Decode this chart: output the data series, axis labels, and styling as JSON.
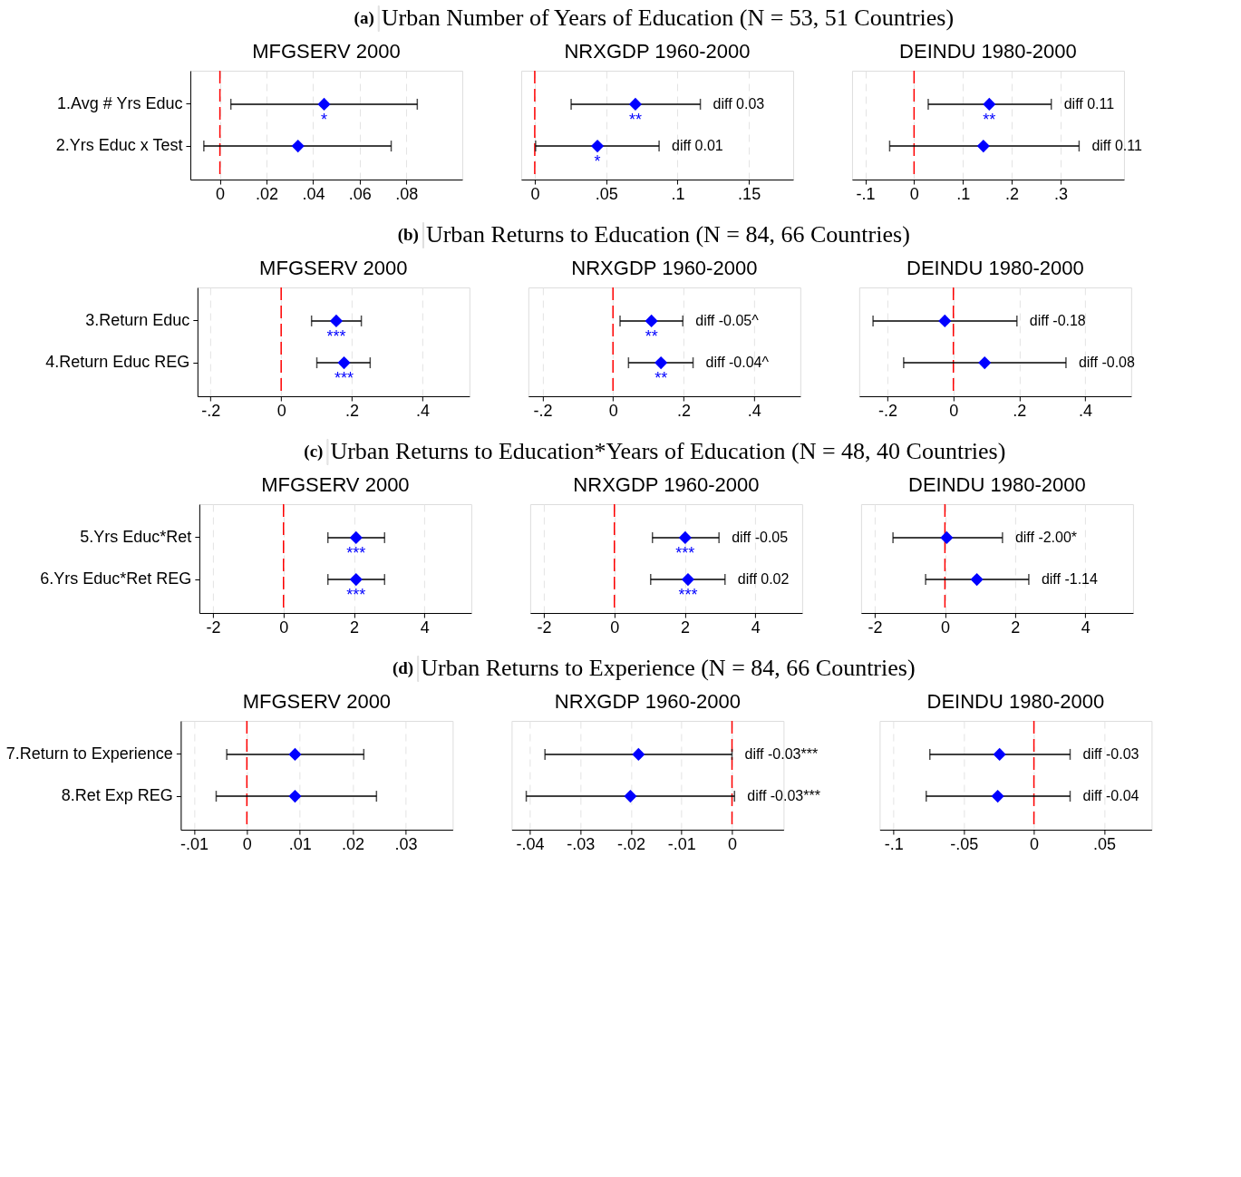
{
  "chart_data": [
    {
      "type": "scatter",
      "orientation": "horizontal",
      "title": "MFGSERV 2000",
      "annotations": [
        "(a) Urban Number of Years of Education (N = 53, 51 Countries)"
      ],
      "categories": [
        "1.Avg # Yrs Educ",
        "2.Yrs Educ x Test"
      ],
      "series": [
        {
          "color": "#0000ff",
          "values": [
            0.0447,
            0.0335
          ],
          "errors": [
            [
              0.0047,
              0.0847
            ],
            [
              -0.0069,
              0.0735
            ]
          ],
          "value_labels": [
            "*",
            null
          ]
        }
      ],
      "xlim": [
        -0.0127,
        0.104
      ],
      "xticks": [
        0,
        {
          "value": 0.02,
          "label": ".02"
        },
        {
          "value": 0.04,
          "label": ".04"
        },
        {
          "value": 0.06,
          "label": ".06"
        },
        {
          "value": 0.08,
          "label": ".08"
        }
      ],
      "grid": "x",
      "marker": "diamond",
      "ref_lines": [
        {
          "axis": "x",
          "value": 0,
          "color": "#ff0000",
          "line_style": "dashed"
        }
      ]
    },
    {
      "type": "scatter",
      "orientation": "horizontal",
      "title": "NRXGDP 1960-2000",
      "annotations": [
        {
          "text": "diff 0.03",
          "x": 0.116,
          "y": "1.Avg # Yrs Educ"
        },
        {
          "text": "diff 0.01",
          "x": 0.0871,
          "y": "2.Yrs Educ x Test"
        }
      ],
      "categories": [
        "1.Avg # Yrs Educ",
        "2.Yrs Educ x Test"
      ],
      "series": [
        {
          "color": "#0000ff",
          "values": [
            0.0705,
            0.0439
          ],
          "errors": [
            [
              0.0255,
              0.116
            ],
            [
              0.0006,
              0.0871
            ]
          ],
          "value_labels": [
            "**",
            "*"
          ]
        }
      ],
      "xlim": [
        -0.0095,
        0.181
      ],
      "xticks": [
        0,
        {
          "value": 0.05,
          "label": ".05"
        },
        {
          "value": 0.1,
          "label": ".1"
        },
        {
          "value": 0.15,
          "label": ".15"
        }
      ],
      "grid": "x",
      "marker": "diamond",
      "tick_labels": "x",
      "ref_lines": [
        {
          "axis": "x",
          "value": 0,
          "color": "#ff0000",
          "line_style": "dashed"
        }
      ]
    },
    {
      "type": "scatter",
      "orientation": "horizontal",
      "title": "DEINDU 1980-2000",
      "annotations": [
        {
          "text": "diff 0.11",
          "x": 0.281,
          "y": "1.Avg # Yrs Educ"
        },
        {
          "text": "diff 0.11",
          "x": 0.338,
          "y": "2.Yrs Educ x Test"
        }
      ],
      "categories": [
        "1.Avg # Yrs Educ",
        "2.Yrs Educ x Test"
      ],
      "series": [
        {
          "color": "#0000ff",
          "values": [
            0.154,
            0.142
          ],
          "errors": [
            [
              0.029,
              0.281
            ],
            [
              -0.05,
              0.338
            ]
          ],
          "value_labels": [
            "**",
            null
          ]
        }
      ],
      "xlim": [
        -0.127,
        0.43
      ],
      "xticks": [
        {
          "value": -0.1,
          "label": "-.1"
        },
        0,
        {
          "value": 0.1,
          "label": ".1"
        },
        {
          "value": 0.2,
          "label": ".2"
        },
        {
          "value": 0.3,
          "label": ".3"
        }
      ],
      "grid": "x",
      "marker": "diamond",
      "tick_labels": "x",
      "ref_lines": [
        {
          "axis": "x",
          "value": 0,
          "color": "#ff0000",
          "line_style": "dashed"
        }
      ]
    },
    {
      "type": "scatter",
      "orientation": "horizontal",
      "title": "MFGSERV 2000",
      "annotations": [
        "(b) Urban Returns to Education (N = 84, 66 Countries)"
      ],
      "categories": [
        "3.Return Educ",
        "4.Return Educ REG"
      ],
      "series": [
        {
          "color": "#0000ff",
          "values": [
            0.156,
            0.178
          ],
          "errors": [
            [
              0.086,
              0.227
            ],
            [
              0.101,
              0.252
            ]
          ],
          "value_labels": [
            "***",
            "***"
          ]
        }
      ],
      "xlim": [
        -0.237,
        0.533
      ],
      "xticks": [
        {
          "value": -0.2,
          "label": "-.2"
        },
        0,
        {
          "value": 0.2,
          "label": ".2"
        },
        {
          "value": 0.4,
          "label": ".4"
        }
      ],
      "grid": "x",
      "marker": "diamond",
      "ref_lines": [
        {
          "axis": "x",
          "value": 0,
          "color": "#ff0000",
          "line_style": "dashed"
        }
      ]
    },
    {
      "type": "scatter",
      "orientation": "horizontal",
      "title": "NRXGDP 1960-2000",
      "annotations": [
        {
          "text": "diff -0.05^",
          "x": 0.198,
          "y": "3.Return Educ"
        },
        {
          "text": "diff -0.04^",
          "x": 0.227,
          "y": "4.Return Educ REG"
        }
      ],
      "categories": [
        "3.Return Educ",
        "4.Return Educ REG"
      ],
      "series": [
        {
          "color": "#0000ff",
          "values": [
            0.109,
            0.136
          ],
          "errors": [
            [
              0.02,
              0.198
            ],
            [
              0.044,
              0.227
            ]
          ],
          "value_labels": [
            "**",
            "**"
          ]
        }
      ],
      "xlim": [
        -0.24,
        0.531
      ],
      "xticks": [
        {
          "value": -0.2,
          "label": "-.2"
        },
        0,
        {
          "value": 0.2,
          "label": ".2"
        },
        {
          "value": 0.4,
          "label": ".4"
        }
      ],
      "grid": "x",
      "marker": "diamond",
      "tick_labels": "x",
      "ref_lines": [
        {
          "axis": "x",
          "value": 0,
          "color": "#ff0000",
          "line_style": "dashed"
        }
      ]
    },
    {
      "type": "scatter",
      "orientation": "horizontal",
      "title": "DEINDU 1980-2000",
      "annotations": [
        {
          "text": "diff -0.18",
          "x": 0.193,
          "y": "3.Return Educ"
        },
        {
          "text": "diff -0.08",
          "x": 0.342,
          "y": "4.Return Educ REG"
        }
      ],
      "categories": [
        "3.Return Educ",
        "4.Return Educ REG"
      ],
      "series": [
        {
          "color": "#0000ff",
          "values": [
            -0.026,
            0.095
          ],
          "errors": [
            [
              -0.244,
              0.193
            ],
            [
              -0.151,
              0.342
            ]
          ]
        }
      ],
      "xlim": [
        -0.286,
        0.54
      ],
      "xticks": [
        {
          "value": -0.2,
          "label": "-.2"
        },
        0,
        {
          "value": 0.2,
          "label": ".2"
        },
        {
          "value": 0.4,
          "label": ".4"
        }
      ],
      "grid": "x",
      "marker": "diamond",
      "tick_labels": "x",
      "ref_lines": [
        {
          "axis": "x",
          "value": 0,
          "color": "#ff0000",
          "line_style": "dashed"
        }
      ]
    },
    {
      "type": "scatter",
      "orientation": "horizontal",
      "title": "MFGSERV 2000",
      "annotations": [
        "(c) Urban Returns to Education*Years of Education (N = 48, 40 Countries)"
      ],
      "categories": [
        "5.Yrs Educ*Ret",
        "6.Yrs Educ*Ret REG"
      ],
      "series": [
        {
          "color": "#0000ff",
          "values": [
            2.06,
            2.06
          ],
          "errors": [
            [
              1.26,
              2.87
            ],
            [
              1.26,
              2.87
            ]
          ],
          "value_labels": [
            "***",
            "***"
          ]
        }
      ],
      "xlim": [
        -2.39,
        5.33
      ],
      "xticks": [
        -2,
        0,
        2,
        4
      ],
      "grid": "x",
      "marker": "diamond",
      "ref_lines": [
        {
          "axis": "x",
          "value": 0,
          "color": "#ff0000",
          "line_style": "dashed"
        }
      ]
    },
    {
      "type": "scatter",
      "orientation": "horizontal",
      "title": "NRXGDP 1960-2000",
      "annotations": [
        {
          "text": "diff -0.05",
          "x": 2.97,
          "y": "5.Yrs Educ*Ret"
        },
        {
          "text": "diff 0.02",
          "x": 3.14,
          "y": "6.Yrs Educ*Ret REG"
        }
      ],
      "categories": [
        "5.Yrs Educ*Ret",
        "6.Yrs Educ*Ret REG"
      ],
      "series": [
        {
          "color": "#0000ff",
          "values": [
            2.01,
            2.09
          ],
          "errors": [
            [
              1.08,
              2.97
            ],
            [
              1.03,
              3.14
            ]
          ],
          "value_labels": [
            "***",
            "***"
          ]
        }
      ],
      "xlim": [
        -2.39,
        5.33
      ],
      "xticks": [
        -2,
        0,
        2,
        4
      ],
      "grid": "x",
      "marker": "diamond",
      "tick_labels": "x",
      "ref_lines": [
        {
          "axis": "x",
          "value": 0,
          "color": "#ff0000",
          "line_style": "dashed"
        }
      ]
    },
    {
      "type": "scatter",
      "orientation": "horizontal",
      "title": "DEINDU 1980-2000",
      "annotations": [
        {
          "text": "diff -2.00*",
          "x": 1.64,
          "y": "5.Yrs Educ*Ret"
        },
        {
          "text": "diff -1.14",
          "x": 2.39,
          "y": "6.Yrs Educ*Ret REG"
        }
      ],
      "categories": [
        "5.Yrs Educ*Ret",
        "6.Yrs Educ*Ret REG"
      ],
      "series": [
        {
          "color": "#0000ff",
          "values": [
            0.05,
            0.91
          ],
          "errors": [
            [
              -1.48,
              1.64
            ],
            [
              -0.55,
              2.39
            ]
          ]
        }
      ],
      "xlim": [
        -2.39,
        5.36
      ],
      "xticks": [
        -2,
        0,
        2,
        4
      ],
      "grid": "x",
      "marker": "diamond",
      "tick_labels": "x",
      "ref_lines": [
        {
          "axis": "x",
          "value": 0,
          "color": "#ff0000",
          "line_style": "dashed"
        }
      ]
    },
    {
      "type": "scatter",
      "orientation": "horizontal",
      "title": "MFGSERV 2000",
      "annotations": [
        "(d) Urban Returns to Experience (N = 84, 66 Countries)"
      ],
      "categories": [
        "7.Return to Experience",
        "8.Ret Exp REG"
      ],
      "series": [
        {
          "color": "#0000ff",
          "values": [
            0.0091,
            0.0091
          ],
          "errors": [
            [
              -0.0038,
              0.0221
            ],
            [
              -0.0058,
              0.0245
            ]
          ]
        }
      ],
      "xlim": [
        -0.0125,
        0.0389
      ],
      "xticks": [
        {
          "value": -0.01,
          "label": "-.01"
        },
        0,
        {
          "value": 0.01,
          "label": ".01"
        },
        {
          "value": 0.02,
          "label": ".02"
        },
        {
          "value": 0.03,
          "label": ".03"
        }
      ],
      "grid": "x",
      "marker": "diamond",
      "ref_lines": [
        {
          "axis": "x",
          "value": 0,
          "color": "#ff0000",
          "line_style": "dashed"
        }
      ]
    },
    {
      "type": "scatter",
      "orientation": "horizontal",
      "title": "NRXGDP 1960-2000",
      "annotations": [
        {
          "text": "diff -0.03***",
          "x": 0,
          "y": "7.Return to Experience"
        },
        {
          "text": "diff -0.03***",
          "x": 0.0005,
          "y": "8.Ret Exp REG"
        }
      ],
      "categories": [
        "7.Return to Experience",
        "8.Ret Exp REG"
      ],
      "series": [
        {
          "color": "#0000ff",
          "values": [
            -0.0185,
            -0.0201
          ],
          "errors": [
            [
              -0.037,
              0
            ],
            [
              -0.0407,
              0.0005
            ]
          ]
        }
      ],
      "xlim": [
        -0.0436,
        0.0102
      ],
      "xticks": [
        {
          "value": -0.04,
          "label": "-.04"
        },
        {
          "value": -0.03,
          "label": "-.03"
        },
        {
          "value": -0.02,
          "label": "-.02"
        },
        {
          "value": -0.01,
          "label": "-.01"
        },
        0
      ],
      "grid": "x",
      "marker": "diamond",
      "tick_labels": "x",
      "ref_lines": [
        {
          "axis": "x",
          "value": 0,
          "color": "#ff0000",
          "line_style": "dashed"
        }
      ]
    },
    {
      "type": "scatter",
      "orientation": "horizontal",
      "title": "DEINDU 1980-2000",
      "annotations": [
        {
          "text": "diff -0.03",
          "x": 0.0258,
          "y": "7.Return to Experience"
        },
        {
          "text": "diff -0.04",
          "x": 0.0258,
          "y": "8.Ret Exp REG"
        }
      ],
      "categories": [
        "7.Return to Experience",
        "8.Ret Exp REG"
      ],
      "series": [
        {
          "color": "#0000ff",
          "values": [
            -0.0245,
            -0.0258
          ],
          "errors": [
            [
              -0.0742,
              0.0258
            ],
            [
              -0.0768,
              0.0258
            ]
          ]
        }
      ],
      "xlim": [
        -0.11,
        0.0839
      ],
      "xticks": [
        {
          "value": -0.1,
          "label": "-.1"
        },
        {
          "value": -0.05,
          "label": "-.05"
        },
        0,
        {
          "value": 0.05,
          "label": ".05"
        }
      ],
      "grid": "x",
      "marker": "diamond",
      "tick_labels": "x",
      "ref_lines": [
        {
          "axis": "x",
          "value": 0,
          "color": "#ff0000",
          "line_style": "dashed"
        }
      ]
    }
  ]
}
